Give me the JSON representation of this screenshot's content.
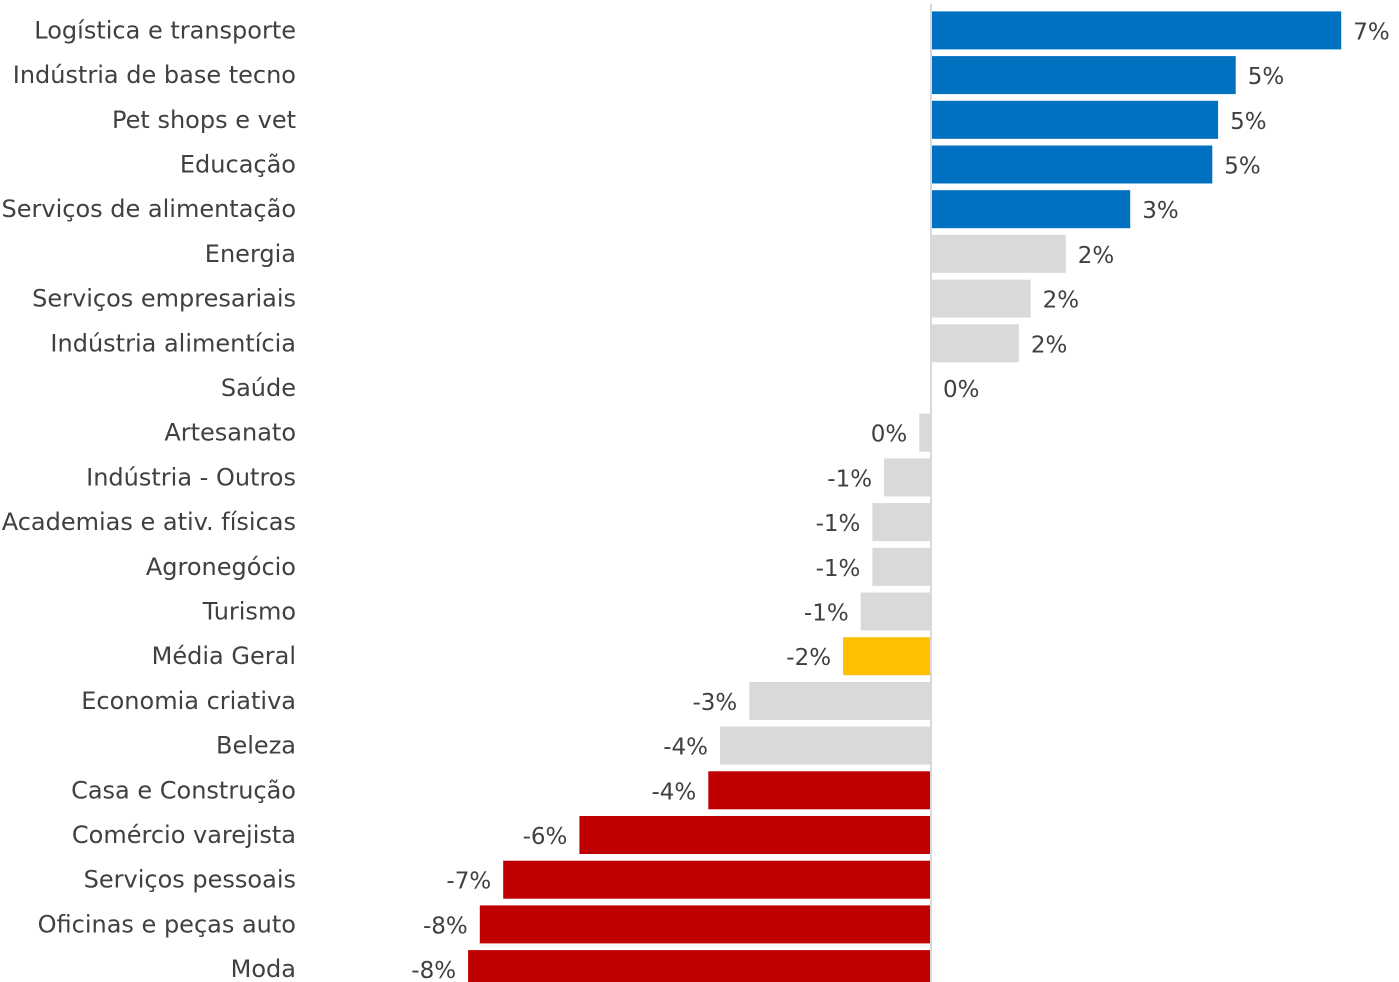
{
  "chart_data": {
    "type": "bar",
    "orientation": "horizontal",
    "categories": [
      "Logística e transporte",
      "Indústria de base tecno",
      "Pet shops e vet",
      "Educação",
      "Serviços de alimentação",
      "Energia",
      "Serviços empresariais",
      "Indústria alimentícia",
      "Saúde",
      "Artesanato",
      "Indústria - Outros",
      "Academias e ativ. físicas",
      "Agronegócio",
      "Turismo",
      "Média Geral",
      "Economia criativa",
      "Beleza",
      "Casa e Construção",
      "Comércio varejista",
      "Serviços pessoais",
      "Oficinas e peças auto",
      "Moda"
    ],
    "values": [
      7.0,
      5.2,
      4.9,
      4.8,
      3.4,
      2.3,
      1.7,
      1.5,
      0.0,
      -0.2,
      -0.8,
      -1.0,
      -1.0,
      -1.2,
      -1.5,
      -3.1,
      -3.6,
      -3.8,
      -6.0,
      -7.3,
      -7.7,
      -7.9
    ],
    "value_labels": [
      "7%",
      "5%",
      "5%",
      "5%",
      "3%",
      "2%",
      "2%",
      "2%",
      "0%",
      "0%",
      "-1%",
      "-1%",
      "-1%",
      "-1%",
      "-2%",
      "-3%",
      "-4%",
      "-4%",
      "-6%",
      "-7%",
      "-8%",
      "-8%"
    ],
    "bar_colors": [
      "#0070c0",
      "#0070c0",
      "#0070c0",
      "#0070c0",
      "#0070c0",
      "#d9d9d9",
      "#d9d9d9",
      "#d9d9d9",
      "#d9d9d9",
      "#d9d9d9",
      "#d9d9d9",
      "#d9d9d9",
      "#d9d9d9",
      "#d9d9d9",
      "#ffc000",
      "#d9d9d9",
      "#d9d9d9",
      "#c00000",
      "#c00000",
      "#c00000",
      "#c00000",
      "#c00000"
    ],
    "xlim": [
      -8.2,
      7.3
    ],
    "grid": false,
    "legend": "none",
    "title": "",
    "xlabel": "",
    "ylabel": ""
  }
}
